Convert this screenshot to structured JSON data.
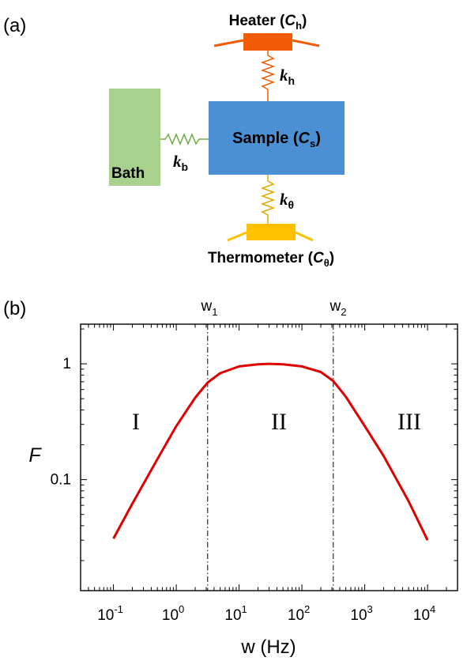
{
  "panel_a": {
    "label": "(a)",
    "heater": {
      "text": "Heater (",
      "sym": "C",
      "sub": "h",
      "close": ")",
      "color": "#f25c05"
    },
    "sample": {
      "text": "Sample (",
      "sym": "C",
      "sub": "s",
      "close": ")",
      "color": "#4a90d2"
    },
    "bath": {
      "text": "Bath",
      "color": "#a9d18e"
    },
    "thermometer": {
      "text": "Thermometer (",
      "sym": "C",
      "sub": "θ",
      "close": ")",
      "color": "#ffc000"
    },
    "k_heater": {
      "sym": "k",
      "sub": "h",
      "color": "#f25c05"
    },
    "k_bath": {
      "sym": "k",
      "sub": "b",
      "color": "#70ad47"
    },
    "k_therm": {
      "sym": "k",
      "sub": "θ",
      "color": "#e0a800"
    }
  },
  "panel_b": {
    "label": "(b)",
    "w1": {
      "base": "w",
      "sub": "1"
    },
    "w2": {
      "base": "w",
      "sub": "2"
    },
    "regions": [
      "I",
      "II",
      "III"
    ],
    "curve_color": "#e00000"
  },
  "chart_data": {
    "type": "line",
    "xlabel": "w (Hz)",
    "ylabel": "F",
    "xscale": "log",
    "yscale": "log",
    "xlim": [
      0.03,
      30000
    ],
    "ylim": [
      0.011,
      2.2
    ],
    "x_ticks": [
      {
        "value": 0.1,
        "base": "10",
        "exp": "-1"
      },
      {
        "value": 1,
        "base": "10",
        "exp": "0"
      },
      {
        "value": 10,
        "base": "10",
        "exp": "1"
      },
      {
        "value": 100,
        "base": "10",
        "exp": "2"
      },
      {
        "value": 1000,
        "base": "10",
        "exp": "3"
      },
      {
        "value": 10000,
        "base": "10",
        "exp": "4"
      }
    ],
    "y_ticks": [
      {
        "value": 0.1,
        "label": "0.1"
      },
      {
        "value": 1,
        "label": "1"
      }
    ],
    "vlines": [
      3.16,
      316
    ],
    "series": [
      {
        "x": [
          0.1,
          0.2,
          0.5,
          1,
          2,
          3.16,
          5,
          10,
          20,
          30,
          50,
          100,
          200,
          316,
          500,
          1000,
          2000,
          5000,
          10000
        ],
        "y": [
          0.031,
          0.062,
          0.15,
          0.29,
          0.51,
          0.69,
          0.83,
          0.95,
          0.99,
          1.0,
          0.99,
          0.95,
          0.85,
          0.71,
          0.52,
          0.29,
          0.16,
          0.065,
          0.03
        ]
      }
    ],
    "grid": false,
    "legend": "none"
  }
}
